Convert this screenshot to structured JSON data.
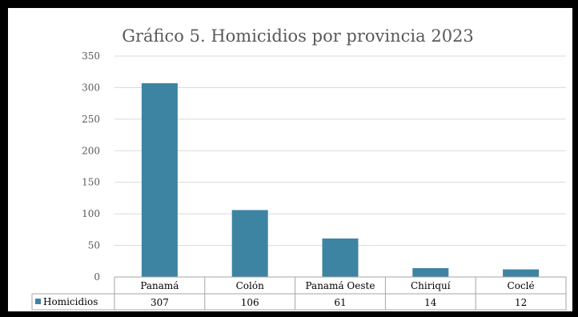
{
  "chart_data": {
    "type": "bar",
    "title": "Gráfico 5. Homicidios por provincia 2023",
    "categories": [
      "Panamá",
      "Colón",
      "Panamá Oeste",
      "Chiriquí",
      "Coclé"
    ],
    "series": [
      {
        "name": "Homicidios",
        "values": [
          307,
          106,
          61,
          14,
          12
        ],
        "color": "#3d84a3"
      }
    ],
    "ylim": [
      0,
      350
    ],
    "yticks": [
      0,
      50,
      100,
      150,
      200,
      250,
      300,
      350
    ],
    "grid": true,
    "legend": "data-table"
  }
}
